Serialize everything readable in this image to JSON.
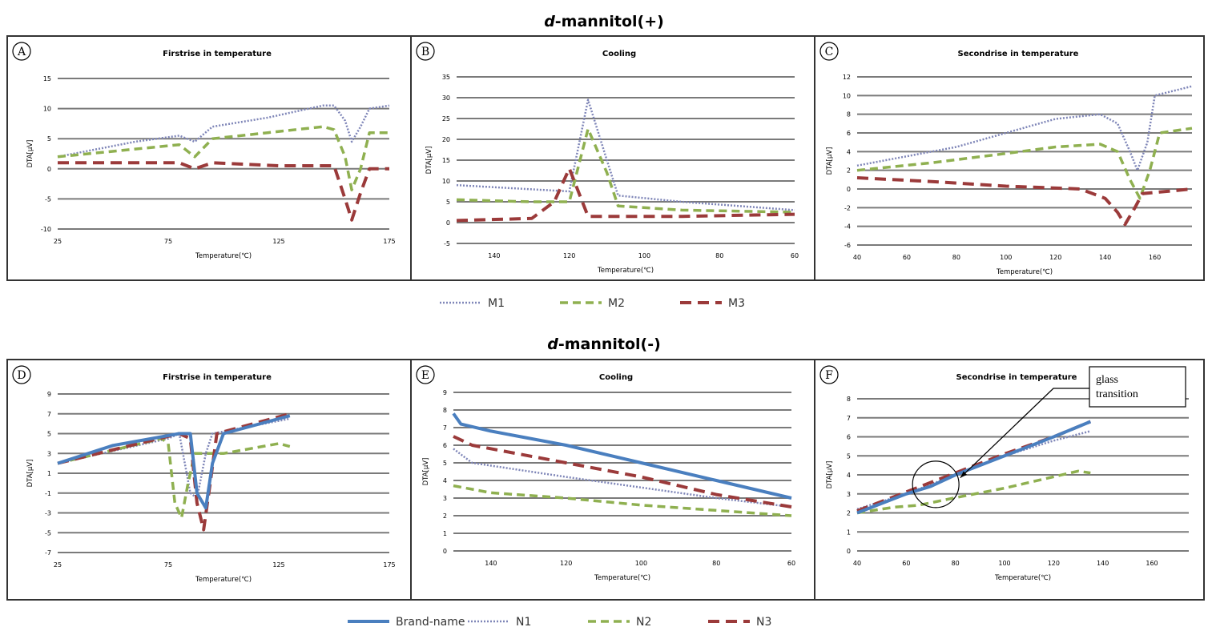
{
  "sections": [
    {
      "title_italic": "d",
      "title_rest": "-mannitol(+)",
      "legend": [
        {
          "name": "M1",
          "color": "#7f86b8",
          "dash": "2,2",
          "width": 2.5
        },
        {
          "name": "M2",
          "color": "#8fb050",
          "dash": "10,6",
          "width": 3.5
        },
        {
          "name": "M3",
          "color": "#9b3a3a",
          "dash": "14,8",
          "width": 4
        }
      ]
    },
    {
      "title_italic": "d",
      "title_rest": "-mannitol(-)",
      "legend": [
        {
          "name": "Brand-name",
          "color": "#4a7fbf",
          "dash": "",
          "width": 4
        },
        {
          "name": "N1",
          "color": "#7f86b8",
          "dash": "2,2",
          "width": 2.5
        },
        {
          "name": "N2",
          "color": "#8fb050",
          "dash": "10,6",
          "width": 3.5
        },
        {
          "name": "N3",
          "color": "#9b3a3a",
          "dash": "14,8",
          "width": 4
        }
      ]
    }
  ],
  "chart_data": [
    {
      "type": "line",
      "panel_letter": "A",
      "title": "Firstrise in temperature",
      "xlabel": "Temperature(℃)",
      "ylabel": "DTA[μV]",
      "xlim": [
        25,
        175
      ],
      "ylim": [
        -10,
        15
      ],
      "xticks": [
        25,
        75,
        125,
        175
      ],
      "yticks": [
        -10,
        -5,
        0,
        5,
        10,
        15
      ],
      "series": [
        {
          "name": "M1",
          "points": [
            [
              25,
              2
            ],
            [
              60,
              4.5
            ],
            [
              80,
              5.5
            ],
            [
              87,
              4.5
            ],
            [
              95,
              7
            ],
            [
              120,
              8.5
            ],
            [
              145,
              10.5
            ],
            [
              150,
              10.5
            ],
            [
              155,
              8
            ],
            [
              158,
              4.5
            ],
            [
              162,
              7
            ],
            [
              166,
              10
            ],
            [
              175,
              10.5
            ]
          ]
        },
        {
          "name": "M2",
          "points": [
            [
              25,
              2
            ],
            [
              80,
              4
            ],
            [
              87,
              2
            ],
            [
              95,
              5
            ],
            [
              120,
              6
            ],
            [
              145,
              7
            ],
            [
              150,
              6.5
            ],
            [
              155,
              2
            ],
            [
              158,
              -3.5
            ],
            [
              162,
              0
            ],
            [
              166,
              6
            ],
            [
              175,
              6
            ]
          ]
        },
        {
          "name": "M3",
          "points": [
            [
              25,
              1
            ],
            [
              80,
              1
            ],
            [
              87,
              0
            ],
            [
              95,
              1
            ],
            [
              125,
              0.5
            ],
            [
              150,
              0.5
            ],
            [
              155,
              -5
            ],
            [
              158,
              -8.5
            ],
            [
              162,
              -4
            ],
            [
              166,
              0
            ],
            [
              175,
              0
            ]
          ]
        }
      ]
    },
    {
      "type": "line",
      "panel_letter": "B",
      "title": "Cooling",
      "xlabel": "Temperature(℃)",
      "ylabel": "DTA[μV]",
      "xlim": [
        150,
        60
      ],
      "ylim": [
        -5,
        35
      ],
      "xticks": [
        140,
        120,
        100,
        80,
        60
      ],
      "yticks": [
        -5,
        0,
        5,
        10,
        15,
        20,
        25,
        30,
        35
      ],
      "series": [
        {
          "name": "M1",
          "points": [
            [
              150,
              9
            ],
            [
              130,
              8
            ],
            [
              120,
              7.5
            ],
            [
              115,
              29.5
            ],
            [
              110,
              15
            ],
            [
              107,
              6.5
            ],
            [
              90,
              5
            ],
            [
              60,
              3
            ]
          ]
        },
        {
          "name": "M2",
          "points": [
            [
              150,
              5.5
            ],
            [
              130,
              5
            ],
            [
              120,
              5
            ],
            [
              115,
              22.5
            ],
            [
              110,
              12
            ],
            [
              107,
              4
            ],
            [
              90,
              3
            ],
            [
              60,
              2.5
            ]
          ]
        },
        {
          "name": "M3",
          "points": [
            [
              150,
              0.5
            ],
            [
              130,
              1
            ],
            [
              124,
              5
            ],
            [
              120,
              13
            ],
            [
              115,
              1.5
            ],
            [
              90,
              1.5
            ],
            [
              60,
              2
            ]
          ]
        }
      ]
    },
    {
      "type": "line",
      "panel_letter": "C",
      "title": "Secondrise in temperature",
      "xlabel": "Temperature(℃)",
      "ylabel": "DTA[μV]",
      "xlim": [
        40,
        175
      ],
      "ylim": [
        -6,
        12
      ],
      "xticks": [
        40,
        60,
        80,
        100,
        120,
        140,
        160
      ],
      "yticks": [
        -6,
        -4,
        -2,
        0,
        2,
        4,
        6,
        8,
        10,
        12
      ],
      "series": [
        {
          "name": "M1",
          "points": [
            [
              40,
              2.5
            ],
            [
              80,
              4.5
            ],
            [
              100,
              6
            ],
            [
              120,
              7.5
            ],
            [
              138,
              8
            ],
            [
              145,
              7
            ],
            [
              150,
              4
            ],
            [
              153,
              2
            ],
            [
              157,
              5
            ],
            [
              160,
              10
            ],
            [
              175,
              11
            ]
          ]
        },
        {
          "name": "M2",
          "points": [
            [
              40,
              2
            ],
            [
              70,
              2.8
            ],
            [
              100,
              3.8
            ],
            [
              120,
              4.5
            ],
            [
              138,
              4.8
            ],
            [
              145,
              4
            ],
            [
              150,
              1
            ],
            [
              154,
              -1
            ],
            [
              158,
              2
            ],
            [
              162,
              6
            ],
            [
              175,
              6.5
            ]
          ]
        },
        {
          "name": "M3",
          "points": [
            [
              40,
              1.2
            ],
            [
              70,
              0.8
            ],
            [
              100,
              0.3
            ],
            [
              130,
              0
            ],
            [
              140,
              -1
            ],
            [
              145,
              -2.5
            ],
            [
              148,
              -3.8
            ],
            [
              152,
              -2
            ],
            [
              155,
              -0.5
            ],
            [
              175,
              0
            ]
          ]
        }
      ]
    },
    {
      "type": "line",
      "panel_letter": "D",
      "title": "Firstrise in temperature",
      "xlabel": "Temperature(℃)",
      "ylabel": "DTA[μV]",
      "xlim": [
        25,
        175
      ],
      "ylim": [
        -7,
        9
      ],
      "xticks": [
        25,
        75,
        125,
        175
      ],
      "yticks": [
        -7,
        -5,
        -3,
        -1,
        1,
        3,
        5,
        7,
        9
      ],
      "series": [
        {
          "name": "Brand-name",
          "points": [
            [
              25,
              2
            ],
            [
              50,
              3.8
            ],
            [
              80,
              5
            ],
            [
              85,
              5
            ],
            [
              88,
              -1
            ],
            [
              92,
              -2.5
            ],
            [
              95,
              2
            ],
            [
              100,
              5
            ],
            [
              130,
              6.8
            ]
          ]
        },
        {
          "name": "N1",
          "points": [
            [
              25,
              2
            ],
            [
              75,
              4.5
            ],
            [
              80,
              5
            ],
            [
              85,
              -1
            ],
            [
              88,
              -1.5
            ],
            [
              92,
              3
            ],
            [
              95,
              5
            ],
            [
              130,
              6.5
            ]
          ]
        },
        {
          "name": "N2",
          "points": [
            [
              25,
              2
            ],
            [
              72,
              4.5
            ],
            [
              75,
              4
            ],
            [
              78,
              -2
            ],
            [
              81,
              -3.5
            ],
            [
              84,
              0
            ],
            [
              87,
              3
            ],
            [
              100,
              3
            ],
            [
              125,
              4
            ],
            [
              130,
              3.7
            ]
          ]
        },
        {
          "name": "N3",
          "points": [
            [
              25,
              2
            ],
            [
              80,
              5
            ],
            [
              85,
              4.5
            ],
            [
              88,
              -2
            ],
            [
              91,
              -4.7
            ],
            [
              94,
              0
            ],
            [
              97,
              5
            ],
            [
              130,
              7
            ]
          ]
        }
      ]
    },
    {
      "type": "line",
      "panel_letter": "E",
      "title": "Cooling",
      "xlabel": "Temperature(℃)",
      "ylabel": "DTA[μV]",
      "xlim": [
        150,
        60
      ],
      "ylim": [
        0,
        9
      ],
      "xticks": [
        140,
        120,
        100,
        80,
        60
      ],
      "yticks": [
        0,
        1,
        2,
        3,
        4,
        5,
        6,
        7,
        8,
        9
      ],
      "series": [
        {
          "name": "Brand-name",
          "points": [
            [
              150,
              7.8
            ],
            [
              148,
              7.2
            ],
            [
              140,
              6.8
            ],
            [
              120,
              6
            ],
            [
              100,
              5
            ],
            [
              80,
              4
            ],
            [
              60,
              3
            ]
          ]
        },
        {
          "name": "N1",
          "points": [
            [
              150,
              5.8
            ],
            [
              145,
              5
            ],
            [
              120,
              4.2
            ],
            [
              100,
              3.6
            ],
            [
              80,
              3
            ],
            [
              60,
              2.5
            ]
          ]
        },
        {
          "name": "N2",
          "points": [
            [
              150,
              3.7
            ],
            [
              140,
              3.3
            ],
            [
              120,
              3
            ],
            [
              100,
              2.6
            ],
            [
              80,
              2.3
            ],
            [
              60,
              2
            ]
          ]
        },
        {
          "name": "N3",
          "points": [
            [
              150,
              6.5
            ],
            [
              145,
              6
            ],
            [
              120,
              5
            ],
            [
              100,
              4.2
            ],
            [
              80,
              3.2
            ],
            [
              60,
              2.5
            ]
          ]
        }
      ]
    },
    {
      "type": "line",
      "panel_letter": "F",
      "title": "Secondrise in temperature",
      "xlabel": "Temperature(℃)",
      "ylabel": "DTA[μV]",
      "xlim": [
        40,
        175
      ],
      "ylim": [
        0,
        8
      ],
      "xticks": [
        40,
        60,
        80,
        100,
        120,
        140,
        160
      ],
      "yticks": [
        0,
        1,
        2,
        3,
        4,
        5,
        6,
        7,
        8
      ],
      "annotation": "glass transition",
      "annotation_lines": [
        "glass",
        "transition"
      ],
      "series": [
        {
          "name": "Brand-name",
          "points": [
            [
              40,
              2
            ],
            [
              60,
              3
            ],
            [
              70,
              3.4
            ],
            [
              80,
              4
            ],
            [
              100,
              5
            ],
            [
              120,
              6
            ],
            [
              135,
              6.8
            ]
          ]
        },
        {
          "name": "N1",
          "points": [
            [
              40,
              2.2
            ],
            [
              60,
              3
            ],
            [
              80,
              4
            ],
            [
              100,
              5
            ],
            [
              120,
              5.8
            ],
            [
              135,
              6.3
            ]
          ]
        },
        {
          "name": "N2",
          "points": [
            [
              40,
              2
            ],
            [
              55,
              2.3
            ],
            [
              65,
              2.4
            ],
            [
              80,
              2.8
            ],
            [
              100,
              3.3
            ],
            [
              120,
              3.9
            ],
            [
              130,
              4.2
            ],
            [
              135,
              4.1
            ]
          ]
        },
        {
          "name": "N3",
          "points": [
            [
              40,
              2.1
            ],
            [
              60,
              3.1
            ],
            [
              80,
              4.1
            ],
            [
              100,
              5.1
            ],
            [
              120,
              6
            ],
            [
              135,
              6.8
            ]
          ]
        }
      ]
    }
  ]
}
